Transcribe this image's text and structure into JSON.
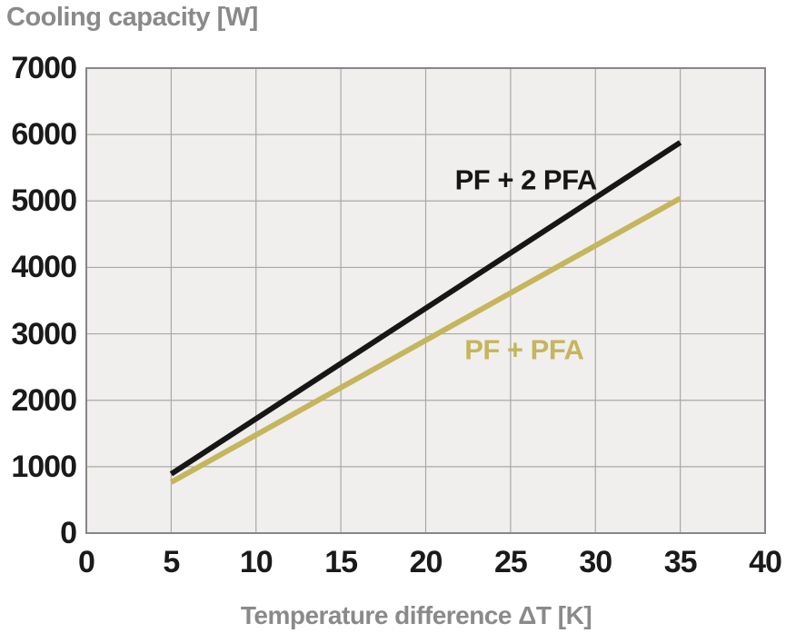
{
  "chart_data": {
    "type": "line",
    "title": "Cooling capacity [W]",
    "xlabel": "Temperature difference ΔT [K]",
    "ylabel": "Cooling capacity [W]",
    "xlim": [
      0,
      40
    ],
    "ylim": [
      0,
      7000
    ],
    "xticks": [
      0,
      5,
      10,
      15,
      20,
      25,
      30,
      35,
      40
    ],
    "yticks": [
      0,
      1000,
      2000,
      3000,
      4000,
      5000,
      6000,
      7000
    ],
    "grid": true,
    "legend_position": "inline-annotations",
    "series": [
      {
        "name": "PF + 2 PFA",
        "color": "#161616",
        "x": [
          5,
          35
        ],
        "y": [
          890,
          5880
        ],
        "label": {
          "text": "PF + 2 PFA",
          "anchor_x": 25.9,
          "anchor_y": 5320
        }
      },
      {
        "name": "PF + PFA",
        "color": "#c5b55c",
        "x": [
          5,
          35
        ],
        "y": [
          765,
          5040
        ],
        "label": {
          "text": "PF + PFA",
          "anchor_x": 25.8,
          "anchor_y": 2760
        }
      }
    ]
  },
  "colors": {
    "axis_text": "#1a1a1a",
    "muted_text": "#8a8a8a",
    "plot_bg": "#f0efee",
    "grid_line": "#a9a8a6",
    "plot_border": "#87878a",
    "page_bg": "#ffffff"
  }
}
